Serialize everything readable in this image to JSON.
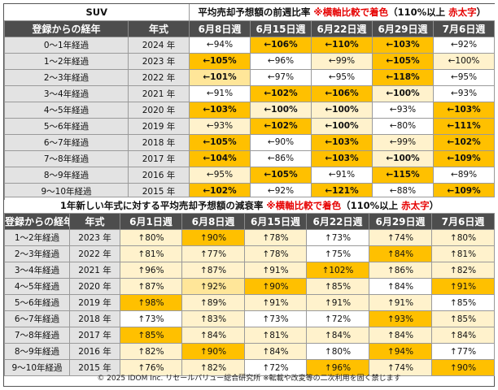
{
  "table1": {
    "label": "SUV",
    "title_main": "平均売却予想額の前週比率",
    "title_note": "※横軸比較で着色",
    "title_paren_open": "（110%以上",
    "title_paren_red": "赤太字",
    "title_paren_close": "）",
    "col_label": "登録からの経年",
    "col_year": "年式",
    "weeks": [
      "6月8日週",
      "6月15日週",
      "6月22日週",
      "6月29日週",
      "7月6日週"
    ],
    "rows": [
      {
        "label": "0～1年経過",
        "year": "2024 年",
        "cells": [
          [
            "←94%",
            "#ffffff",
            "n"
          ],
          [
            "←106%",
            "#ffc000",
            "b"
          ],
          [
            "←110%",
            "#ffc000",
            "b"
          ],
          [
            "←103%",
            "#ffc000",
            "b"
          ],
          [
            "←92%",
            "#ffffff",
            "n"
          ]
        ]
      },
      {
        "label": "1～2年経過",
        "year": "2023 年",
        "cells": [
          [
            "←105%",
            "#ffc000",
            "b"
          ],
          [
            "←96%",
            "#ffffff",
            "n"
          ],
          [
            "←99%",
            "#fff2cc",
            "n"
          ],
          [
            "←105%",
            "#ffc000",
            "b"
          ],
          [
            "←100%",
            "#fff2cc",
            "n"
          ]
        ]
      },
      {
        "label": "2～3年経過",
        "year": "2022 年",
        "cells": [
          [
            "←101%",
            "#ffe699",
            "b"
          ],
          [
            "←97%",
            "#ffffff",
            "n"
          ],
          [
            "←95%",
            "#ffffff",
            "n"
          ],
          [
            "←118%",
            "#ffc000",
            "r"
          ],
          [
            "←95%",
            "#ffffff",
            "n"
          ]
        ]
      },
      {
        "label": "3～4年経過",
        "year": "2021 年",
        "cells": [
          [
            "←91%",
            "#ffffff",
            "n"
          ],
          [
            "←102%",
            "#ffc000",
            "b"
          ],
          [
            "←106%",
            "#ffc000",
            "b"
          ],
          [
            "←100%",
            "#fff2cc",
            "b"
          ],
          [
            "←93%",
            "#ffffff",
            "n"
          ]
        ]
      },
      {
        "label": "4～5年経過",
        "year": "2020 年",
        "cells": [
          [
            "←103%",
            "#ffc000",
            "b"
          ],
          [
            "←100%",
            "#fff2cc",
            "b"
          ],
          [
            "←100%",
            "#fff2cc",
            "b"
          ],
          [
            "←93%",
            "#ffffff",
            "n"
          ],
          [
            "←103%",
            "#ffc000",
            "b"
          ]
        ]
      },
      {
        "label": "5～6年経過",
        "year": "2019 年",
        "cells": [
          [
            "←93%",
            "#fff2cc",
            "n"
          ],
          [
            "←102%",
            "#ffc000",
            "b"
          ],
          [
            "←100%",
            "#fff2cc",
            "b"
          ],
          [
            "←80%",
            "#ffffff",
            "g"
          ],
          [
            "←111%",
            "#ffc000",
            "r"
          ]
        ]
      },
      {
        "label": "6～7年経過",
        "year": "2018 年",
        "cells": [
          [
            "←105%",
            "#ffc000",
            "b"
          ],
          [
            "←90%",
            "#ffffff",
            "g"
          ],
          [
            "←103%",
            "#ffc000",
            "b"
          ],
          [
            "←99%",
            "#fff2cc",
            "n"
          ],
          [
            "←102%",
            "#ffc000",
            "b"
          ]
        ]
      },
      {
        "label": "7～8年経過",
        "year": "2017 年",
        "cells": [
          [
            "←104%",
            "#ffc000",
            "b"
          ],
          [
            "←86%",
            "#ffffff",
            "g"
          ],
          [
            "←103%",
            "#ffc000",
            "b"
          ],
          [
            "←100%",
            "#fff2cc",
            "b"
          ],
          [
            "←109%",
            "#ffc000",
            "b"
          ]
        ]
      },
      {
        "label": "8～9年経過",
        "year": "2016 年",
        "cells": [
          [
            "←95%",
            "#fff2cc",
            "n"
          ],
          [
            "←105%",
            "#ffc000",
            "b"
          ],
          [
            "←91%",
            "#ffffff",
            "n"
          ],
          [
            "←115%",
            "#ffc000",
            "r"
          ],
          [
            "←89%",
            "#ffffff",
            "g"
          ]
        ]
      },
      {
        "label": "9～10年経過",
        "year": "2015 年",
        "cells": [
          [
            "←102%",
            "#ffc000",
            "b"
          ],
          [
            "←92%",
            "#ffffff",
            "n"
          ],
          [
            "←121%",
            "#ffc000",
            "r"
          ],
          [
            "←88%",
            "#ffffff",
            "g"
          ],
          [
            "←109%",
            "#ffc000",
            "b"
          ]
        ]
      }
    ]
  },
  "table2": {
    "title_main": "1年新しい年式に対する平均売却予想額の減衰率",
    "title_note": "※横軸比較で着色",
    "title_paren_open": "（110%以上",
    "title_paren_red": "赤太字",
    "title_paren_close": "）",
    "col_label": "登録からの経年",
    "col_year": "年式",
    "weeks": [
      "6月1日週",
      "6月8日週",
      "6月15日週",
      "6月22日週",
      "6月29日週",
      "7月6日週"
    ],
    "rows": [
      {
        "label": "1～2年経過",
        "year": "2023 年",
        "cells": [
          [
            "↑80%",
            "#fff2cc",
            "g"
          ],
          [
            "↑90%",
            "#ffc000",
            "w"
          ],
          [
            "↑78%",
            "#fff2cc",
            "g"
          ],
          [
            "↑73%",
            "#ffffff",
            "g"
          ],
          [
            "↑74%",
            "#fff2cc",
            "g"
          ],
          [
            "↑80%",
            "#fff2cc",
            "g"
          ]
        ]
      },
      {
        "label": "2～3年経過",
        "year": "2022 年",
        "cells": [
          [
            "↑81%",
            "#fff2cc",
            "g"
          ],
          [
            "↑77%",
            "#fff2cc",
            "g"
          ],
          [
            "↑78%",
            "#fff2cc",
            "g"
          ],
          [
            "↑75%",
            "#ffffff",
            "g"
          ],
          [
            "↑84%",
            "#ffc000",
            "w"
          ],
          [
            "↑81%",
            "#fff2cc",
            "g"
          ]
        ]
      },
      {
        "label": "3～4年経過",
        "year": "2021 年",
        "cells": [
          [
            "↑96%",
            "#fff2cc",
            "bk"
          ],
          [
            "↑87%",
            "#fff2cc",
            "g"
          ],
          [
            "↑91%",
            "#fff2cc",
            "bk"
          ],
          [
            "↑102%",
            "#ffc000",
            "bk"
          ],
          [
            "↑86%",
            "#fff2cc",
            "g"
          ],
          [
            "↑82%",
            "#fff2cc",
            "g"
          ]
        ]
      },
      {
        "label": "4～5年経過",
        "year": "2020 年",
        "cells": [
          [
            "↑87%",
            "#fff2cc",
            "g"
          ],
          [
            "↑92%",
            "#ffe699",
            "bk"
          ],
          [
            "↑90%",
            "#ffc000",
            "w"
          ],
          [
            "↑85%",
            "#fff2cc",
            "g"
          ],
          [
            "↑84%",
            "#ffffff",
            "g"
          ],
          [
            "↑91%",
            "#ffc000",
            "bk"
          ]
        ]
      },
      {
        "label": "5～6年経過",
        "year": "2019 年",
        "cells": [
          [
            "↑98%",
            "#ffc000",
            "bk"
          ],
          [
            "↑89%",
            "#fff2cc",
            "g"
          ],
          [
            "↑91%",
            "#fff2cc",
            "bk"
          ],
          [
            "↑91%",
            "#fff2cc",
            "bk"
          ],
          [
            "↑91%",
            "#fff2cc",
            "bk"
          ],
          [
            "↑85%",
            "#ffffff",
            "g"
          ]
        ]
      },
      {
        "label": "6～7年経過",
        "year": "2018 年",
        "cells": [
          [
            "↑73%",
            "#ffffff",
            "g"
          ],
          [
            "↑83%",
            "#fff2cc",
            "g"
          ],
          [
            "↑73%",
            "#ffffff",
            "g"
          ],
          [
            "↑72%",
            "#ffffff",
            "g"
          ],
          [
            "↑93%",
            "#ffc000",
            "bk"
          ],
          [
            "↑85%",
            "#fff2cc",
            "g"
          ]
        ]
      },
      {
        "label": "7～8年経過",
        "year": "2017 年",
        "cells": [
          [
            "↑85%",
            "#ffc000",
            "w"
          ],
          [
            "↑84%",
            "#fff2cc",
            "g"
          ],
          [
            "↑81%",
            "#fff2cc",
            "g"
          ],
          [
            "↑84%",
            "#fff2cc",
            "g"
          ],
          [
            "↑84%",
            "#fff2cc",
            "g"
          ],
          [
            "↑84%",
            "#fff2cc",
            "g"
          ]
        ]
      },
      {
        "label": "8～9年経過",
        "year": "2016 年",
        "cells": [
          [
            "↑82%",
            "#fff2cc",
            "g"
          ],
          [
            "↑90%",
            "#ffc000",
            "bk"
          ],
          [
            "↑84%",
            "#fff2cc",
            "g"
          ],
          [
            "↑80%",
            "#ffffff",
            "g"
          ],
          [
            "↑94%",
            "#ffc000",
            "bk"
          ],
          [
            "↑77%",
            "#ffffff",
            "g"
          ]
        ]
      },
      {
        "label": "9～10年経過",
        "year": "2015 年",
        "cells": [
          [
            "↑76%",
            "#fff2cc",
            "g"
          ],
          [
            "↑82%",
            "#fff2cc",
            "g"
          ],
          [
            "↑72%",
            "#ffffff",
            "g"
          ],
          [
            "↑96%",
            "#ffc000",
            "bk"
          ],
          [
            "↑74%",
            "#fff2cc",
            "g"
          ],
          [
            "↑90%",
            "#ffc000",
            "bk"
          ]
        ]
      }
    ]
  },
  "footer": "© 2025 IDOM Inc. リセールバリュー総合研究所 ※転載や改変等の二次利用を固く禁じます"
}
